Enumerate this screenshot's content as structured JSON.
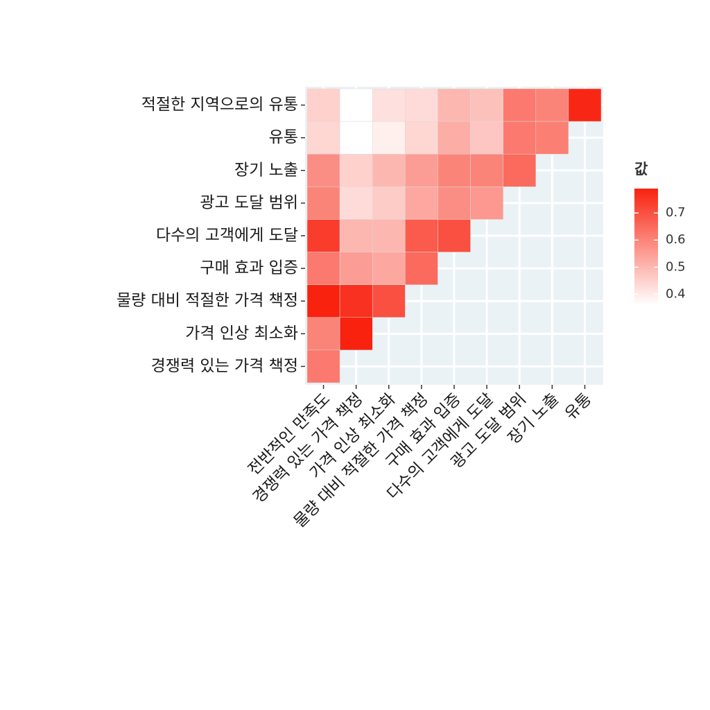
{
  "chart_data": {
    "type": "heatmap",
    "x": [
      "전반적인 만족도",
      "경쟁력 있는 가격 책정",
      "가격 인상 최소화",
      "물량 대비 적절한 가격 책정",
      "구매 효과 입증",
      "다수의 고객에게 도달",
      "광고 도달 범위",
      "장기 노출",
      "유통"
    ],
    "y": [
      "적절한 지역으로의 유통",
      "유통",
      "장기 노출",
      "광고 도달 범위",
      "다수의 고객에게 도달",
      "구매 효과 입증",
      "물량 대비 적절한 가격 책정",
      "가격 인상 최소화",
      "경쟁력 있는 가격 책정"
    ],
    "z": [
      [
        0.45,
        0.36,
        0.42,
        0.43,
        0.5,
        0.48,
        0.62,
        0.6,
        0.78
      ],
      [
        0.44,
        0.36,
        0.39,
        0.44,
        0.52,
        0.47,
        0.62,
        0.61,
        null
      ],
      [
        0.58,
        0.45,
        0.5,
        0.55,
        0.6,
        0.6,
        0.65,
        null,
        null
      ],
      [
        0.6,
        0.43,
        0.46,
        0.53,
        0.58,
        0.56,
        null,
        null,
        null
      ],
      [
        0.74,
        0.5,
        0.5,
        0.68,
        0.7,
        null,
        null,
        null,
        null
      ],
      [
        0.62,
        0.55,
        0.53,
        0.65,
        null,
        null,
        null,
        null,
        null
      ],
      [
        0.79,
        0.76,
        0.7,
        null,
        null,
        null,
        null,
        null,
        null
      ],
      [
        0.6,
        0.79,
        null,
        null,
        null,
        null,
        null,
        null,
        null
      ],
      [
        0.62,
        null,
        null,
        null,
        null,
        null,
        null,
        null,
        null
      ]
    ],
    "legend_title": "값",
    "colorscale": [
      "#ffffff",
      "#f8220f"
    ],
    "zlim": [
      0.36,
      0.79
    ],
    "zticks": [
      0.4,
      0.5,
      0.6,
      0.7
    ],
    "grid": true
  }
}
